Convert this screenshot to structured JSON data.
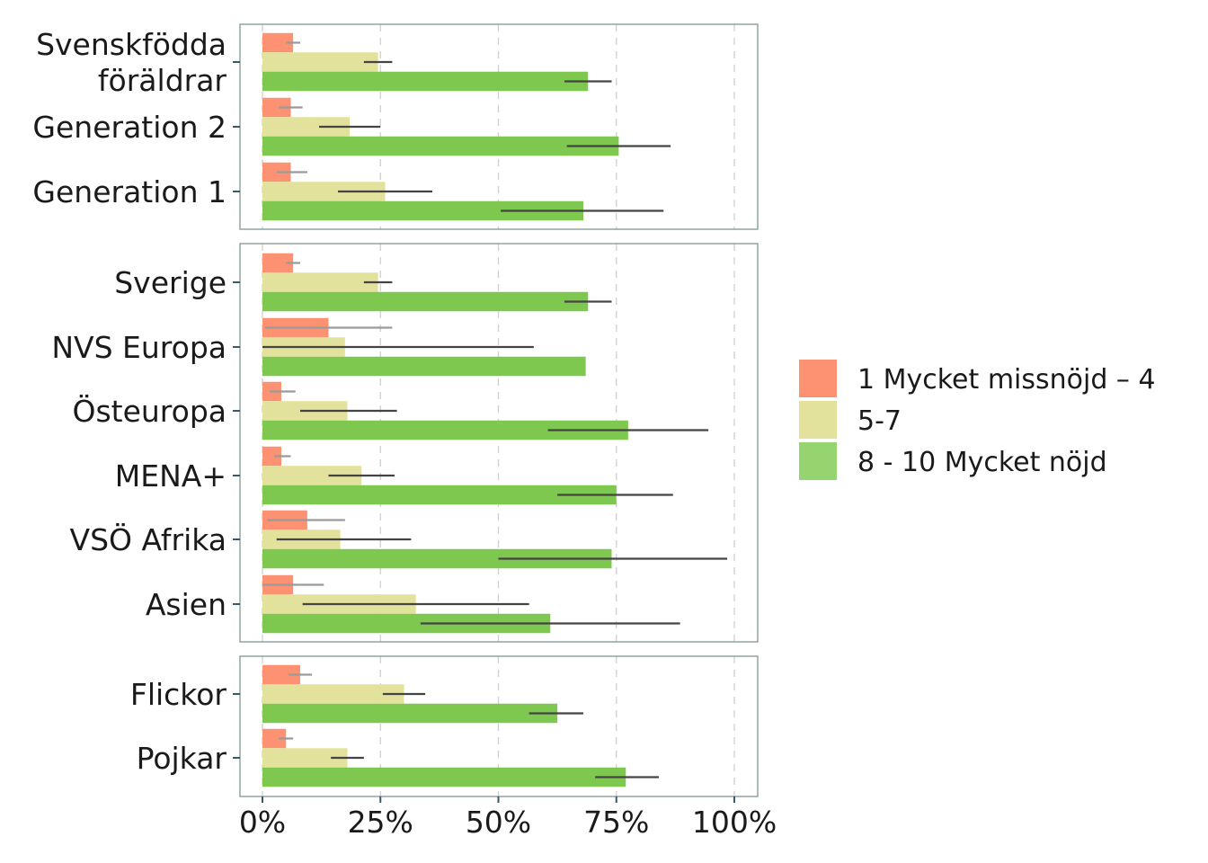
{
  "chart_data": {
    "type": "bar",
    "orientation": "horizontal",
    "xlim": [
      0,
      100
    ],
    "x_ticks": [
      "0%",
      "25%",
      "50%",
      "75%",
      "100%"
    ],
    "grid": "vertical dashed",
    "legend_position": "right",
    "series": [
      {
        "name": "1 Mycket missnöjd – 4",
        "color": "#FC9272",
        "error_color": "#9a9a9a"
      },
      {
        "name": "5-7",
        "color": "#E2E29C",
        "error_color": "#444444"
      },
      {
        "name": "8 - 10 Mycket nöjd",
        "color": "#7EC850",
        "legend_color": "#95D46E",
        "error_color": "#444444"
      }
    ],
    "panels": [
      {
        "categories": [
          {
            "label": [
              "Svenskfödda",
              "föräldrar"
            ],
            "values": [
              6.5,
              24.5,
              69
            ],
            "ci": [
              [
                5,
                8
              ],
              [
                21.5,
                27.5
              ],
              [
                64,
                74
              ]
            ]
          },
          {
            "label": [
              "Generation 2"
            ],
            "values": [
              6,
              18.5,
              75.5
            ],
            "ci": [
              [
                3.5,
                8.5
              ],
              [
                12,
                25
              ],
              [
                64.5,
                86.5
              ]
            ]
          },
          {
            "label": [
              "Generation 1"
            ],
            "values": [
              6,
              26,
              68
            ],
            "ci": [
              [
                3,
                9.5
              ],
              [
                16,
                36
              ],
              [
                50.5,
                85
              ]
            ]
          }
        ]
      },
      {
        "categories": [
          {
            "label": [
              "Sverige"
            ],
            "values": [
              6.5,
              24.5,
              69
            ],
            "ci": [
              [
                5,
                8
              ],
              [
                21.5,
                27.5
              ],
              [
                64,
                74
              ]
            ]
          },
          {
            "label": [
              "NVS Europa"
            ],
            "values": [
              14,
              17.5,
              68.5
            ],
            "ci": [
              [
                0.5,
                27.5
              ],
              [
                0,
                57.5
              ],
              null
            ]
          },
          {
            "label": [
              "Östeuropa"
            ],
            "values": [
              4,
              18,
              77.5
            ],
            "ci": [
              [
                1.5,
                7
              ],
              [
                8,
                28.5
              ],
              [
                60.5,
                94.5
              ]
            ]
          },
          {
            "label": [
              "MENA+"
            ],
            "values": [
              4,
              21,
              75
            ],
            "ci": [
              [
                2.5,
                6
              ],
              [
                14,
                28
              ],
              [
                62.5,
                87
              ]
            ]
          },
          {
            "label": [
              "VSÖ Afrika"
            ],
            "values": [
              9.5,
              16.5,
              74
            ],
            "ci": [
              [
                1,
                17.5
              ],
              [
                3,
                31.5
              ],
              [
                50,
                98.5
              ]
            ]
          },
          {
            "label": [
              "Asien"
            ],
            "values": [
              6.5,
              32.5,
              61
            ],
            "ci": [
              [
                0,
                13
              ],
              [
                8.5,
                56.5
              ],
              [
                33.5,
                88.5
              ]
            ]
          }
        ]
      },
      {
        "categories": [
          {
            "label": [
              "Flickor"
            ],
            "values": [
              8,
              30,
              62.5
            ],
            "ci": [
              [
                5.5,
                10.5
              ],
              [
                25.5,
                34.5
              ],
              [
                56.5,
                68
              ]
            ]
          },
          {
            "label": [
              "Pojkar"
            ],
            "values": [
              5,
              18,
              77
            ],
            "ci": [
              [
                3.5,
                6.5
              ],
              [
                14.5,
                21.5
              ],
              [
                70.5,
                84
              ]
            ]
          }
        ]
      }
    ]
  }
}
